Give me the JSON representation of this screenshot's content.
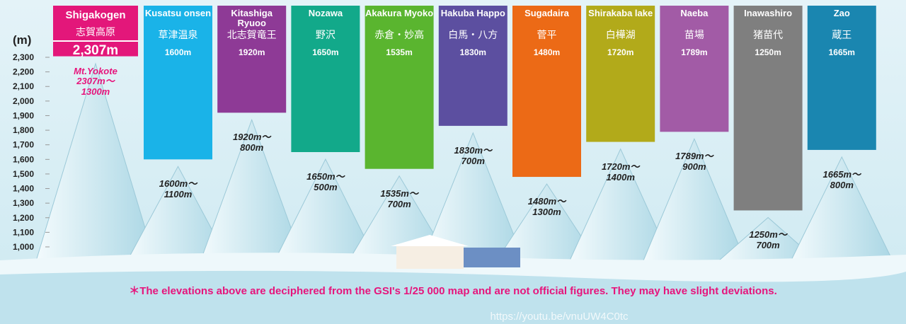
{
  "chart_data": {
    "type": "bar",
    "y_label": "(m)",
    "categories": [
      "Shigakogen",
      "Kusatsu onsen",
      "Kitashiga Ryuoo",
      "Nozawa",
      "Akakura Myoko",
      "Hakuba Happo",
      "Sugadaira",
      "Shirakaba lake",
      "Naeba",
      "Inawashiro",
      "Zao"
    ],
    "categories_ja": [
      "志賀高原",
      "草津温泉",
      "北志賀竜王",
      "野沢",
      "赤倉・妙高",
      "白馬・八方",
      "菅平",
      "白樺湖",
      "苗場",
      "猪苗代",
      "蔵王"
    ],
    "values": [
      2307,
      1600,
      1920,
      1650,
      1535,
      1830,
      1480,
      1720,
      1789,
      1250,
      1665
    ],
    "value_labels": [
      "2,307m",
      "1600m",
      "1920m",
      "1650m",
      "1535m",
      "1830m",
      "1480m",
      "1720m",
      "1789m",
      "1250m",
      "1665m"
    ],
    "colors": [
      "#e3177a",
      "#1ab3e8",
      "#8e3a96",
      "#12a98a",
      "#5ab52f",
      "#5c4fa0",
      "#ec6a16",
      "#b2aa1a",
      "#a25ba6",
      "#7f7f7f",
      "#1a86b0"
    ],
    "ranges": [
      [
        "Mt.Yokote",
        "2307m～",
        "1300m"
      ],
      [
        "1600m～",
        "1100m"
      ],
      [
        "1920m～",
        "800m"
      ],
      [
        "1650m～",
        "500m"
      ],
      [
        "1535m～",
        "700m"
      ],
      [
        "1830m～",
        "700m"
      ],
      [
        "1480m～",
        "1300m"
      ],
      [
        "1720m～",
        "1400m"
      ],
      [
        "1789m～",
        "900m"
      ],
      [
        "1250m～",
        "700m"
      ],
      [
        "1665m～",
        "800m"
      ]
    ],
    "ylim": [
      1000,
      2300
    ],
    "yticks": [
      {
        "value": 1000,
        "label": "1,000"
      },
      {
        "value": 1100,
        "label": "1,100"
      },
      {
        "value": 1200,
        "label": "1,200"
      },
      {
        "value": 1300,
        "label": "1,300"
      },
      {
        "value": 1400,
        "label": "1,400"
      },
      {
        "value": 1500,
        "label": "1,500"
      },
      {
        "value": 1600,
        "label": "1,600"
      },
      {
        "value": 1700,
        "label": "1,700"
      },
      {
        "value": 1800,
        "label": "1,800"
      },
      {
        "value": 1900,
        "label": "1,900"
      },
      {
        "value": 2000,
        "label": "2,000"
      },
      {
        "value": 2100,
        "label": "2,100"
      },
      {
        "value": 2200,
        "label": "2,200"
      },
      {
        "value": 2300,
        "label": "2,300"
      }
    ],
    "note": "＊The elevations above are deciphered from the GSI's 1/25 000 map and are not official figures. They may have slight deviations.",
    "watermark": "https://youtu.be/vnuUW4C0tc"
  }
}
